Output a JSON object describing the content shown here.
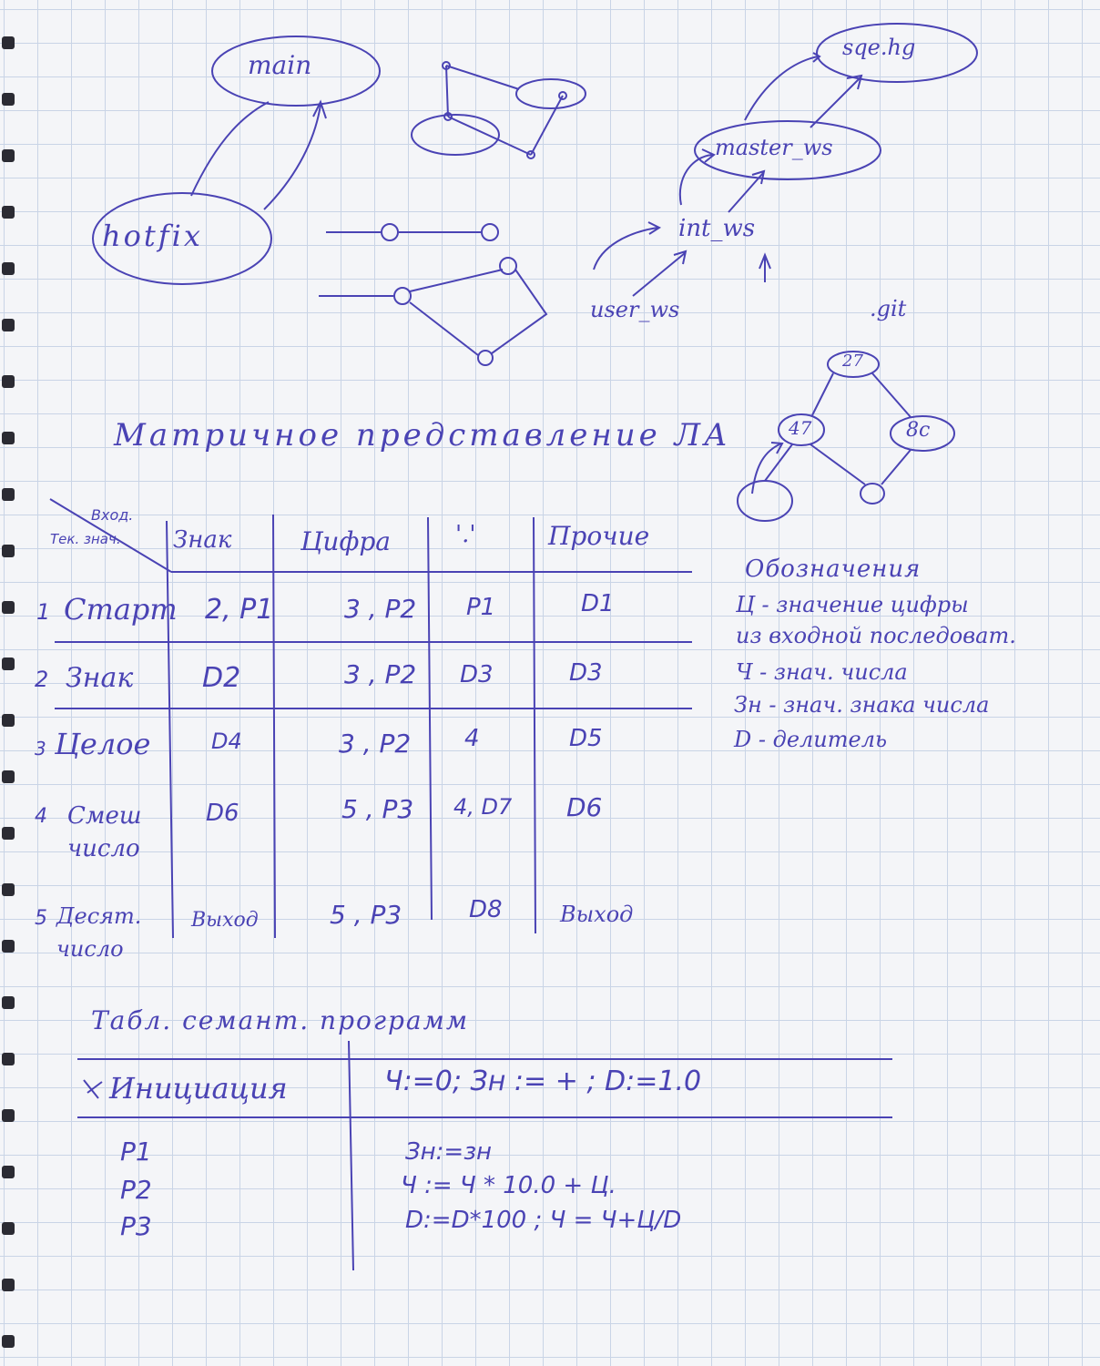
{
  "diagrams": {
    "branches": {
      "main": "main",
      "hotfix": "hotfix"
    },
    "repos": {
      "server": "sqe.hg",
      "master": "master_ws",
      "integration": "int_ws",
      "user": "user_ws",
      "git": ".git"
    },
    "tree_nodes": [
      "27",
      "47",
      "8c"
    ]
  },
  "heading": "Матричное представление ЛА",
  "state_table": {
    "corner_input": "Вход.",
    "corner_state": "Тек. знач.",
    "columns": [
      "Знак",
      "Цифра",
      "'.'",
      "Прочие"
    ],
    "rows": [
      {
        "num": "1",
        "state": "Старт",
        "cells": [
          "2, P1",
          "3 , P2",
          "P1",
          "D1"
        ]
      },
      {
        "num": "2",
        "state": "Знак",
        "cells": [
          "D2",
          "3 , P2",
          "D3",
          "D3"
        ]
      },
      {
        "num": "3",
        "state": "Целое",
        "cells": [
          "D4",
          "3 , P2",
          "4",
          "D5"
        ]
      },
      {
        "num": "4",
        "state": "Смеш число",
        "cells": [
          "D6",
          "5 , P3",
          "4, D7",
          "D6"
        ]
      },
      {
        "num": "5",
        "state": "Десят. число",
        "cells": [
          "Выход",
          "5 , P3",
          "D8",
          "Выход"
        ]
      }
    ]
  },
  "legend": {
    "title": "Обозначения",
    "lines": [
      "Ц - значение цифры",
      "из входной последоват.",
      "Ч - знач. числа",
      "Зн - знач. знака числа",
      "D - делитель"
    ]
  },
  "semantic_table": {
    "title": "Табл. семант. программ",
    "init_label": "Инициация",
    "init_value": "Ч:=0; Зн := + ; D:=1.0",
    "procedures": [
      {
        "name": "P1",
        "action": "Зн:=зн"
      },
      {
        "name": "P2",
        "action": "Ч := Ч * 10.0 + Ц."
      },
      {
        "name": "P3",
        "action": "D:=D*100 ; Ч = Ч+Ц/D"
      }
    ]
  }
}
